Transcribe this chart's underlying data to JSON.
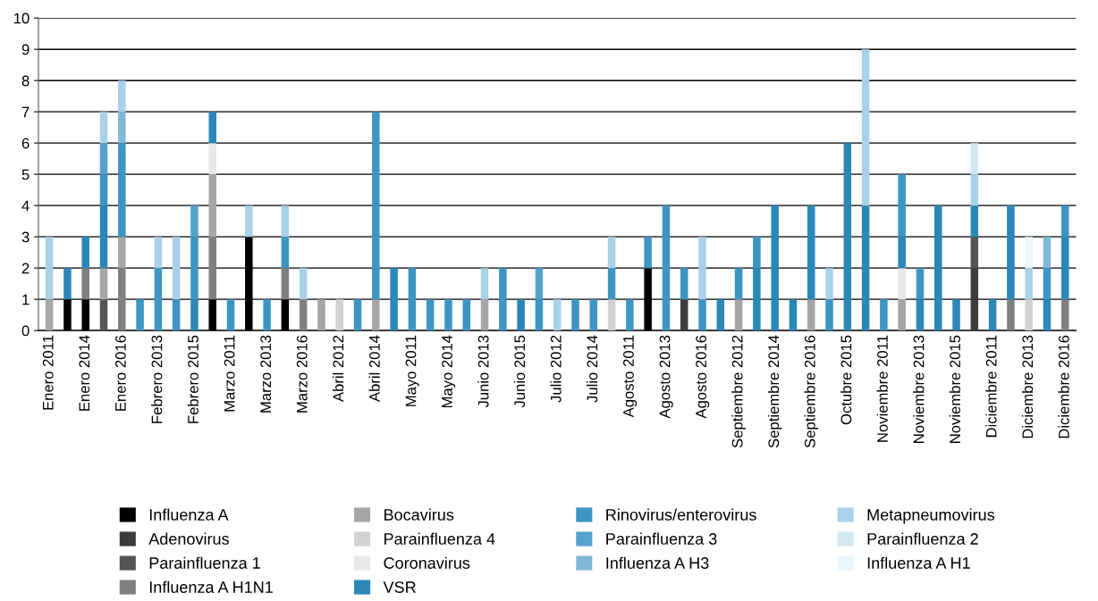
{
  "chart_data": {
    "type": "bar",
    "stacked": true,
    "categories": [
      "Enero 2011",
      null,
      "Enero 2014",
      null,
      "Enero 2016",
      null,
      "Febrero 2013",
      null,
      "Febrero 2015",
      null,
      "Marzo 2011",
      null,
      "Marzo 2013",
      null,
      "Marzo 2016",
      null,
      "Abril 2012",
      null,
      "Abril 2014",
      null,
      "Mayo 2011",
      null,
      "Mayo 2014",
      null,
      "Junio 2013",
      null,
      "Junio 2015",
      null,
      "Julio 2012",
      null,
      "Julio 2014",
      null,
      "Agosto 2011",
      null,
      "Agosto 2013",
      null,
      "Agosto 2016",
      null,
      "Septiembre 2012",
      null,
      "Septiembre 2014",
      null,
      "Septiembre 2016",
      null,
      "Octubre 2015",
      null,
      "Noviembre 2011",
      null,
      "Noviembre 2013",
      null,
      "Noviembre 2015",
      null,
      "Diciembre 2011",
      null,
      "Diciembre 2013",
      null,
      "Diciembre 2016"
    ],
    "ylim": [
      0,
      10
    ],
    "yticks": [
      0,
      1,
      2,
      3,
      4,
      5,
      6,
      7,
      8,
      9,
      10
    ],
    "grid": "y",
    "legend": "bottom",
    "series": [
      {
        "name": "Influenza A",
        "color": "#000000",
        "values": [
          0,
          1,
          1,
          0,
          0,
          0,
          0,
          0,
          0,
          1,
          0,
          3,
          0,
          1,
          0,
          0,
          0,
          0,
          0,
          0,
          0,
          0,
          0,
          0,
          0,
          0,
          0,
          0,
          0,
          0,
          0,
          0,
          0,
          2,
          0,
          0,
          0,
          0,
          0,
          0,
          0,
          0,
          0,
          0,
          0,
          0,
          0,
          0,
          0,
          0,
          0,
          0,
          0,
          0,
          0,
          0,
          0
        ]
      },
      {
        "name": "Adenovirus",
        "color": "#3c3c3c",
        "values": [
          0,
          0,
          0,
          0,
          0,
          0,
          0,
          0,
          0,
          0,
          0,
          0,
          0,
          0,
          0,
          0,
          0,
          0,
          0,
          0,
          0,
          0,
          0,
          0,
          0,
          0,
          0,
          0,
          0,
          0,
          0,
          0,
          0,
          0,
          0,
          1,
          0,
          0,
          0,
          0,
          0,
          0,
          0,
          0,
          0,
          0,
          0,
          0,
          0,
          0,
          0,
          2,
          0,
          0,
          0,
          0,
          0
        ]
      },
      {
        "name": "Parainfluenza 1",
        "color": "#555555",
        "values": [
          0,
          0,
          0,
          1,
          0,
          0,
          0,
          0,
          0,
          0,
          0,
          0,
          0,
          0,
          0,
          0,
          0,
          0,
          0,
          0,
          0,
          0,
          0,
          0,
          0,
          0,
          0,
          0,
          0,
          0,
          0,
          0,
          0,
          0,
          0,
          0,
          0,
          0,
          0,
          0,
          0,
          0,
          0,
          0,
          0,
          0,
          0,
          0,
          0,
          0,
          0,
          1,
          0,
          0,
          0,
          0,
          0
        ]
      },
      {
        "name": "Influenza A H1N1",
        "color": "#808080",
        "values": [
          0,
          0,
          1,
          0,
          2,
          0,
          0,
          0,
          0,
          2,
          0,
          0,
          0,
          1,
          1,
          0,
          0,
          0,
          0,
          0,
          0,
          0,
          0,
          0,
          0,
          0,
          0,
          0,
          0,
          0,
          0,
          0,
          0,
          0,
          0,
          0,
          0,
          0,
          0,
          0,
          0,
          0,
          0,
          0,
          0,
          0,
          0,
          0,
          0,
          0,
          0,
          0,
          0,
          1,
          0,
          0,
          1
        ]
      },
      {
        "name": "Bocavirus",
        "color": "#a6a6a8",
        "values": [
          1,
          0,
          0,
          1,
          1,
          0,
          0,
          0,
          0,
          2,
          0,
          0,
          0,
          0,
          0,
          1,
          0,
          0,
          1,
          0,
          0,
          0,
          0,
          0,
          1,
          0,
          0,
          0,
          0,
          0,
          0,
          0,
          0,
          0,
          0,
          0,
          0,
          0,
          1,
          0,
          0,
          0,
          1,
          0,
          0,
          0,
          0,
          1,
          0,
          0,
          0,
          0,
          0,
          0,
          0,
          0,
          0
        ]
      },
      {
        "name": "Parainfluenza 4",
        "color": "#d2d2d2",
        "values": [
          0,
          0,
          0,
          0,
          0,
          0,
          0,
          0,
          0,
          0,
          0,
          0,
          0,
          0,
          0,
          0,
          1,
          0,
          0,
          0,
          0,
          0,
          0,
          0,
          0,
          0,
          0,
          0,
          0,
          0,
          0,
          1,
          0,
          0,
          0,
          0,
          0,
          0,
          0,
          0,
          0,
          0,
          0,
          0,
          0,
          0,
          0,
          0,
          0,
          0,
          0,
          0,
          0,
          0,
          1,
          0,
          0
        ]
      },
      {
        "name": "Coronavirus",
        "color": "#e8e8e8",
        "values": [
          0,
          0,
          0,
          0,
          0,
          0,
          0,
          0,
          0,
          1,
          0,
          0,
          0,
          0,
          0,
          0,
          0,
          0,
          0,
          0,
          0,
          0,
          0,
          0,
          0,
          0,
          0,
          0,
          0,
          0,
          0,
          0,
          0,
          0,
          0,
          0,
          0,
          0,
          0,
          0,
          0,
          0,
          0,
          0,
          0,
          0,
          0,
          1,
          0,
          0,
          0,
          0,
          0,
          0,
          0,
          0,
          0
        ]
      },
      {
        "name": "VSR",
        "color": "#2b87b8",
        "values": [
          0,
          1,
          1,
          2,
          0,
          0,
          0,
          0,
          1,
          1,
          0,
          0,
          0,
          0,
          0,
          0,
          0,
          0,
          0,
          2,
          0,
          0,
          0,
          0,
          0,
          0,
          1,
          0,
          0,
          0,
          0,
          0,
          0,
          0,
          0,
          0,
          0,
          1,
          0,
          2,
          4,
          1,
          3,
          0,
          6,
          4,
          0,
          1,
          1,
          4,
          1,
          1,
          1,
          3,
          0,
          1,
          2
        ]
      },
      {
        "name": "Rinovirus/enterovirus",
        "color": "#3d95c4",
        "values": [
          0,
          0,
          0,
          1,
          3,
          1,
          2,
          1,
          2,
          0,
          1,
          0,
          1,
          1,
          0,
          0,
          0,
          1,
          6,
          0,
          2,
          1,
          1,
          1,
          0,
          2,
          0,
          1,
          0,
          1,
          1,
          1,
          1,
          1,
          4,
          1,
          1,
          0,
          1,
          1,
          0,
          0,
          0,
          1,
          0,
          0,
          1,
          2,
          1,
          0,
          0,
          0,
          0,
          0,
          0,
          1,
          1
        ]
      },
      {
        "name": "Parainfluenza 3",
        "color": "#55a3cd",
        "values": [
          0,
          0,
          0,
          1,
          0,
          0,
          0,
          0,
          1,
          0,
          0,
          0,
          0,
          0,
          0,
          0,
          0,
          0,
          0,
          0,
          0,
          0,
          0,
          0,
          0,
          0,
          0,
          1,
          0,
          0,
          0,
          0,
          0,
          0,
          0,
          0,
          0,
          0,
          0,
          0,
          0,
          0,
          0,
          0,
          0,
          0,
          0,
          0,
          0,
          0,
          0,
          0,
          0,
          0,
          0,
          0,
          0
        ]
      },
      {
        "name": "Influenza A H3",
        "color": "#80b9d8",
        "values": [
          0,
          0,
          0,
          0,
          1,
          0,
          0,
          0,
          0,
          0,
          0,
          0,
          0,
          0,
          0,
          0,
          0,
          0,
          0,
          0,
          0,
          0,
          0,
          0,
          0,
          0,
          0,
          0,
          0,
          0,
          0,
          0,
          0,
          0,
          0,
          0,
          0,
          0,
          0,
          0,
          0,
          0,
          0,
          0,
          0,
          0,
          0,
          0,
          0,
          0,
          0,
          0,
          0,
          0,
          0,
          1,
          0
        ]
      },
      {
        "name": "Metapneumovirus",
        "color": "#a9d1e7",
        "values": [
          2,
          0,
          0,
          1,
          1,
          0,
          1,
          2,
          0,
          0,
          0,
          1,
          0,
          1,
          1,
          0,
          0,
          0,
          0,
          0,
          0,
          0,
          0,
          0,
          1,
          0,
          0,
          0,
          1,
          0,
          0,
          1,
          0,
          0,
          0,
          0,
          2,
          0,
          0,
          0,
          0,
          0,
          0,
          1,
          0,
          5,
          0,
          0,
          0,
          0,
          0,
          1,
          0,
          0,
          1,
          0,
          0
        ]
      },
      {
        "name": "Parainfluenza 2",
        "color": "#d3e8f3",
        "values": [
          0,
          0,
          0,
          0,
          0,
          0,
          0,
          0,
          0,
          0,
          0,
          0,
          0,
          0,
          0,
          0,
          0,
          0,
          0,
          0,
          0,
          0,
          0,
          0,
          0,
          0,
          0,
          0,
          0,
          0,
          0,
          0,
          0,
          0,
          0,
          0,
          0,
          0,
          0,
          0,
          0,
          0,
          0,
          0,
          0,
          0,
          0,
          0,
          0,
          0,
          0,
          1,
          0,
          0,
          0,
          0,
          0
        ]
      },
      {
        "name": "Influenza A H1",
        "color": "#ecf5fa",
        "values": [
          0,
          0,
          0,
          0,
          0,
          0,
          0,
          0,
          0,
          0,
          0,
          0,
          0,
          0,
          0,
          0,
          0,
          0,
          0,
          0,
          0,
          0,
          0,
          0,
          0,
          0,
          0,
          0,
          0,
          0,
          0,
          0,
          0,
          0,
          0,
          0,
          0,
          0,
          0,
          0,
          0,
          0,
          0,
          0,
          0,
          0,
          0,
          0,
          0,
          0,
          0,
          0,
          0,
          0,
          1,
          0,
          0
        ]
      }
    ]
  }
}
